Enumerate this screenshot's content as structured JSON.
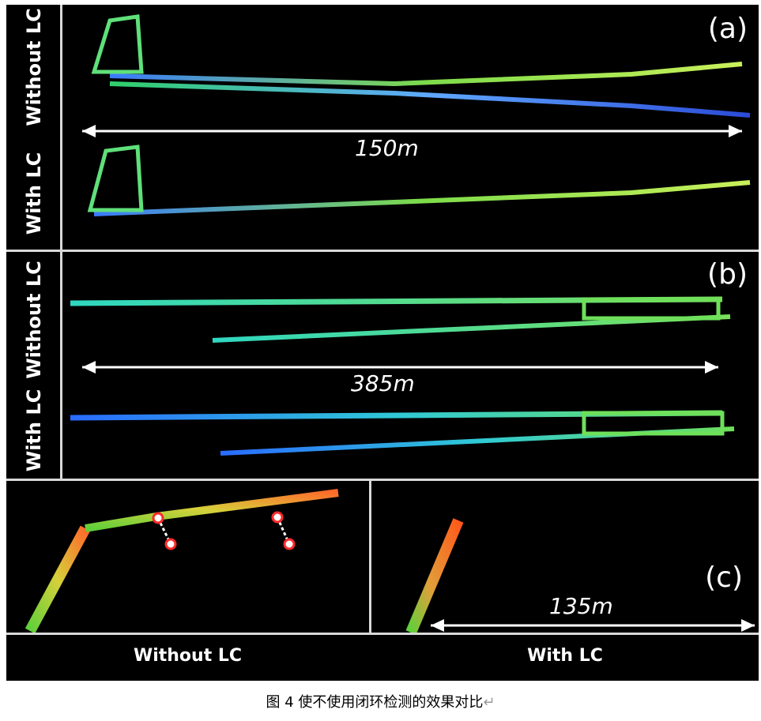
{
  "figure": {
    "panel_a": {
      "tag": "(a)",
      "label_top": "Without LC",
      "label_bottom": "With LC",
      "scale": "150m"
    },
    "panel_b": {
      "tag": "(b)",
      "label_top": "Without LC",
      "label_bottom": "With LC",
      "scale": "385m"
    },
    "panel_c": {
      "tag": "(c)",
      "scale": "135m",
      "label_left": "Without LC",
      "label_right": "With LC"
    }
  },
  "caption": {
    "text": "图 4 使不使用闭环检测的效果对比",
    "mark": "↵"
  },
  "colors": {
    "background": "#000000",
    "separator": "#d9d9d9",
    "arrow": "#ffffff",
    "loop_marker": "#ff2a2a"
  }
}
